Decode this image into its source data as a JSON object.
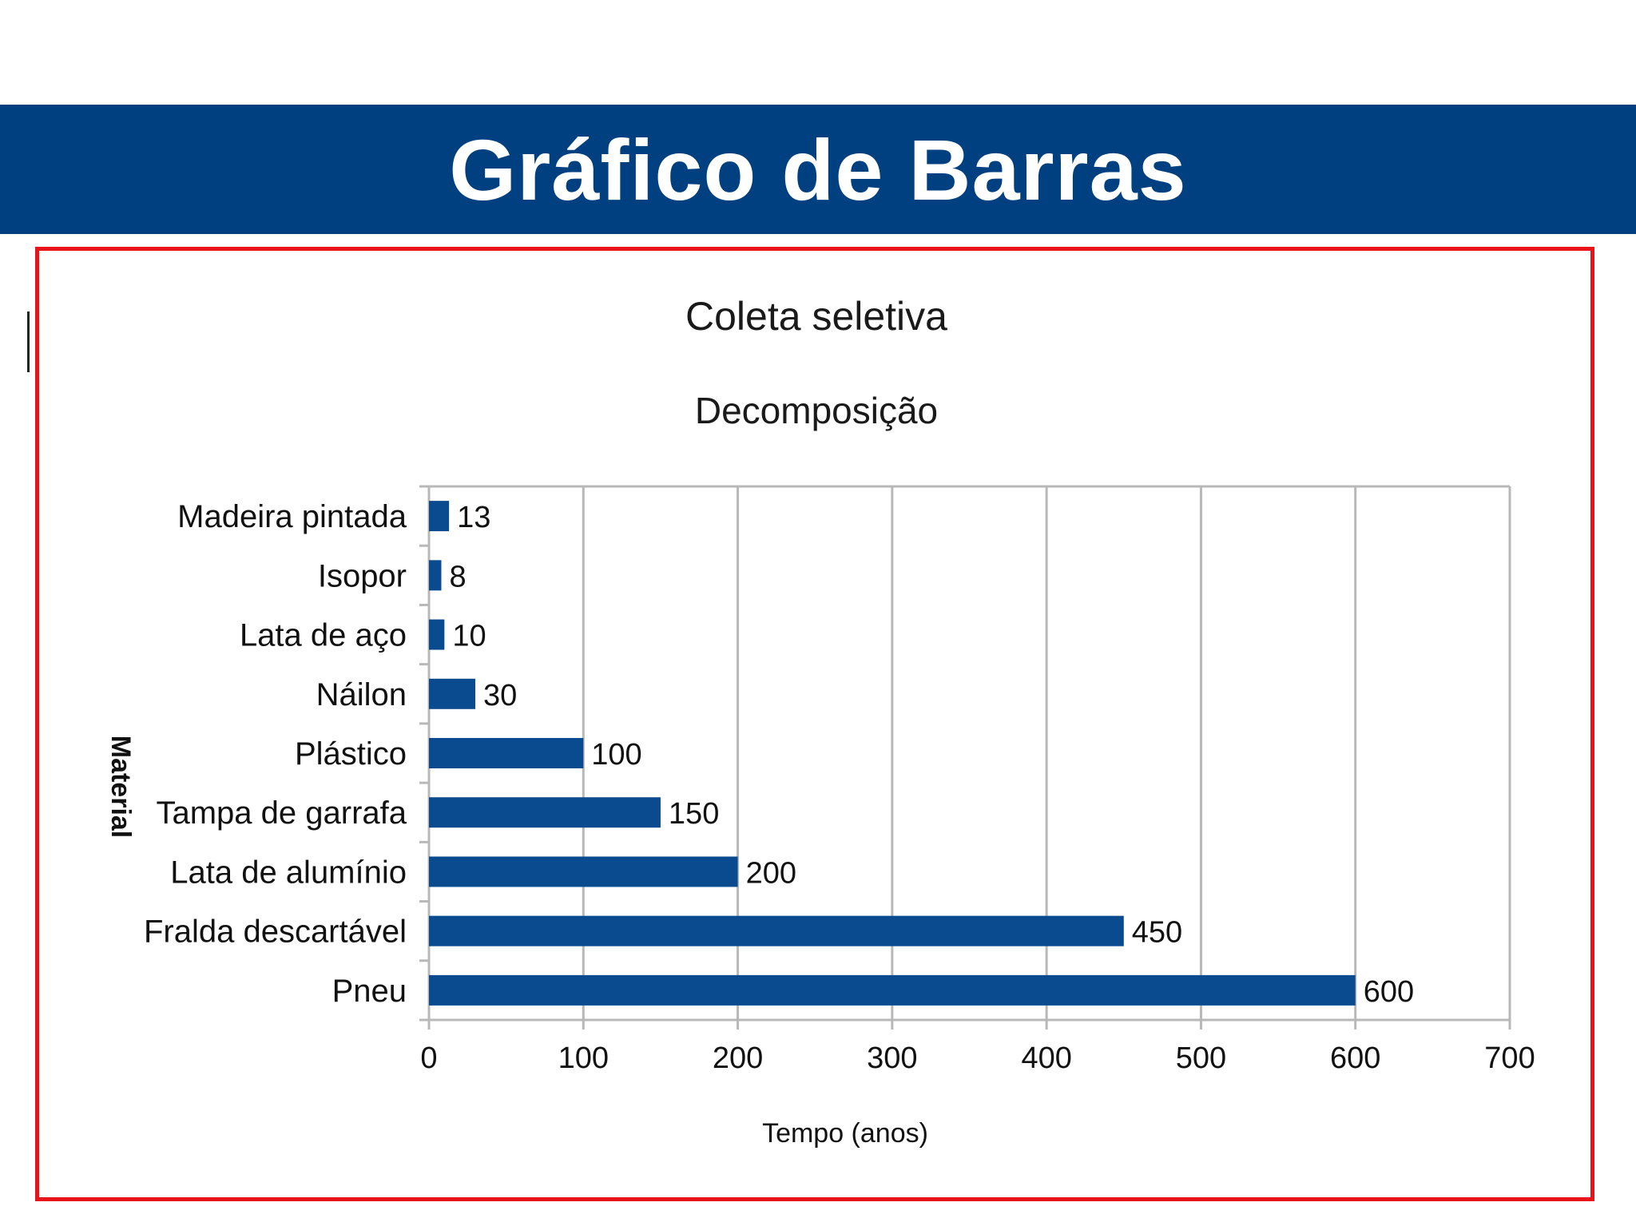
{
  "slide": {
    "title": "Gráfico de Barras"
  },
  "colors": {
    "banner": "#003f80",
    "bar": "#0a4a8e",
    "frame": "#e8141a",
    "grid": "#b8b8b8"
  },
  "chart_data": {
    "type": "bar",
    "orientation": "horizontal",
    "title": "Coleta seletiva",
    "subtitle": "Decomposição",
    "xlabel": "Tempo (anos)",
    "ylabel": "Material",
    "categories": [
      "Madeira pintada",
      "Isopor",
      "Lata de aço",
      "Náilon",
      "Plástico",
      "Tampa de garrafa",
      "Lata de alumínio",
      "Fralda descartável",
      "Pneu"
    ],
    "values": [
      13,
      8,
      10,
      30,
      100,
      150,
      200,
      450,
      600
    ],
    "value_labels": [
      "13",
      "8",
      "10",
      "30",
      "100",
      "150",
      "200",
      "450",
      "600"
    ],
    "xlim": [
      0,
      700
    ],
    "xticks": [
      0,
      100,
      200,
      300,
      400,
      500,
      600,
      700
    ],
    "xtick_labels": [
      "0",
      "100",
      "200",
      "300",
      "400",
      "500",
      "600",
      "700"
    ],
    "grid": true
  }
}
